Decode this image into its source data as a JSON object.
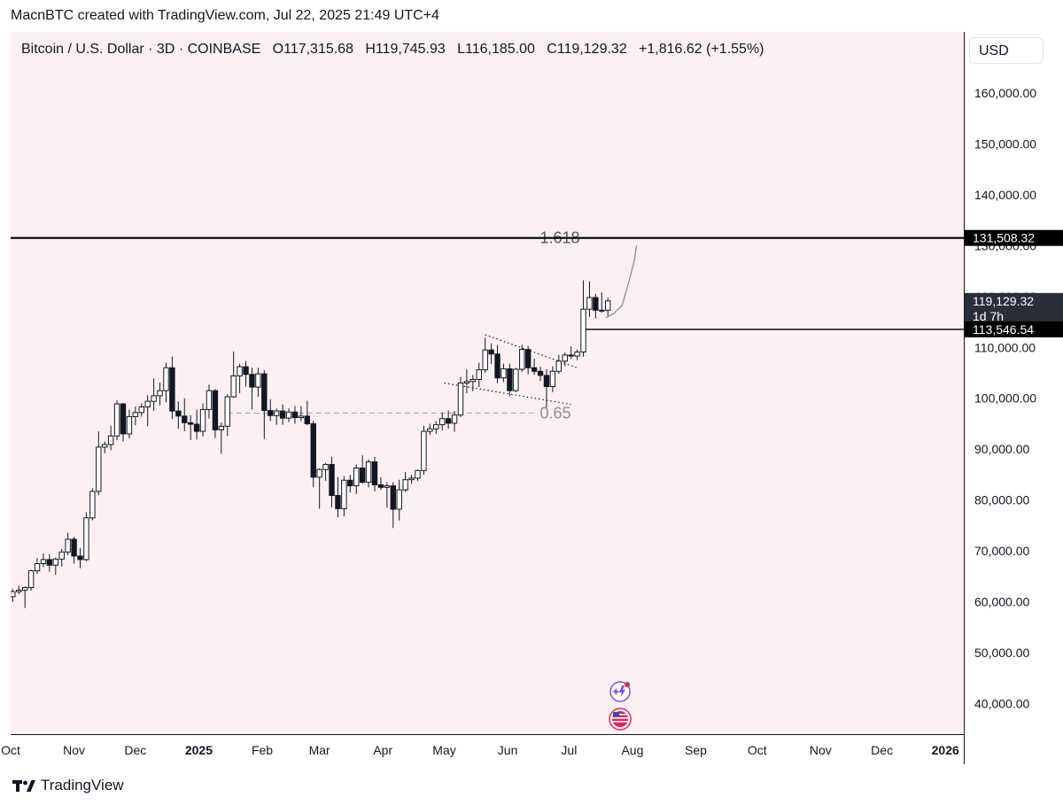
{
  "header": {
    "credit": "MacnBTC created with TradingView.com, Jul 22, 2025 21:49 UTC+4"
  },
  "legend": {
    "symbol": "Bitcoin / U.S. Dollar · 3D · COINBASE",
    "open": "O117,315.68",
    "high": "H119,745.93",
    "low": "L116,185.00",
    "close": "C119,129.32",
    "change": "+1,816.62 (+1.55%)"
  },
  "currency_button": {
    "label": "USD"
  },
  "footer": {
    "brand": "TradingView"
  },
  "colors": {
    "background": "#fcf0f2",
    "candle": "#131722",
    "up_fill": "#ffffff",
    "axis_text": "#131722",
    "fib_text": "#8a8e99"
  },
  "chart_data": {
    "type": "candlestick",
    "title": "Bitcoin / U.S. Dollar · 3D · COINBASE",
    "y_axis": {
      "range": [
        34000,
        172000
      ],
      "ticks": [
        160000,
        150000,
        140000,
        130000,
        120000,
        110000,
        100000,
        90000,
        80000,
        70000,
        60000,
        50000,
        40000
      ],
      "tick_labels": [
        "160,000.00",
        "150,000.00",
        "140,000.00",
        "130,000.00",
        "120,000.00",
        "110,000.00",
        "100,000.00",
        "90,000.00",
        "80,000.00",
        "70,000.00",
        "60,000.00",
        "50,000.00",
        "40,000.00"
      ]
    },
    "x_axis": {
      "range": [
        "2024-10-01",
        "2026-01-10"
      ],
      "ticks": [
        {
          "date": "2024-10-01",
          "label": "Oct"
        },
        {
          "date": "2024-11-01",
          "label": "Nov"
        },
        {
          "date": "2024-12-01",
          "label": "Dec"
        },
        {
          "date": "2025-01-01",
          "label": "2025"
        },
        {
          "date": "2025-02-01",
          "label": "Feb"
        },
        {
          "date": "2025-03-01",
          "label": "Mar"
        },
        {
          "date": "2025-04-01",
          "label": "Apr"
        },
        {
          "date": "2025-05-01",
          "label": "May"
        },
        {
          "date": "2025-06-01",
          "label": "Jun"
        },
        {
          "date": "2025-07-01",
          "label": "Jul"
        },
        {
          "date": "2025-08-01",
          "label": "Aug"
        },
        {
          "date": "2025-09-01",
          "label": "Sep"
        },
        {
          "date": "2025-10-01",
          "label": "Oct"
        },
        {
          "date": "2025-11-01",
          "label": "Nov"
        },
        {
          "date": "2025-12-01",
          "label": "Dec"
        },
        {
          "date": "2026-01-01",
          "label": "2026"
        }
      ]
    },
    "candles": [
      {
        "d": "2024-10-02",
        "o": 61000,
        "h": 62500,
        "l": 60000,
        "c": 62000
      },
      {
        "d": "2024-10-05",
        "o": 62000,
        "h": 63200,
        "l": 61500,
        "c": 62300
      },
      {
        "d": "2024-10-08",
        "o": 62300,
        "h": 63000,
        "l": 58800,
        "c": 62800
      },
      {
        "d": "2024-10-11",
        "o": 62800,
        "h": 66300,
        "l": 62200,
        "c": 66100
      },
      {
        "d": "2024-10-14",
        "o": 66100,
        "h": 68600,
        "l": 65500,
        "c": 67500
      },
      {
        "d": "2024-10-17",
        "o": 67500,
        "h": 69500,
        "l": 66800,
        "c": 68300
      },
      {
        "d": "2024-10-20",
        "o": 68300,
        "h": 69400,
        "l": 65900,
        "c": 67200
      },
      {
        "d": "2024-10-23",
        "o": 67200,
        "h": 68700,
        "l": 65300,
        "c": 68400
      },
      {
        "d": "2024-10-26",
        "o": 68400,
        "h": 70400,
        "l": 66900,
        "c": 69800
      },
      {
        "d": "2024-10-29",
        "o": 69800,
        "h": 73600,
        "l": 69200,
        "c": 72300
      },
      {
        "d": "2024-11-01",
        "o": 72300,
        "h": 72800,
        "l": 67500,
        "c": 69000
      },
      {
        "d": "2024-11-04",
        "o": 69000,
        "h": 70600,
        "l": 66600,
        "c": 68300
      },
      {
        "d": "2024-11-07",
        "o": 68300,
        "h": 77600,
        "l": 68000,
        "c": 76500
      },
      {
        "d": "2024-11-10",
        "o": 76500,
        "h": 82300,
        "l": 76000,
        "c": 81700
      },
      {
        "d": "2024-11-13",
        "o": 81700,
        "h": 93500,
        "l": 81000,
        "c": 90400
      },
      {
        "d": "2024-11-16",
        "o": 90400,
        "h": 91500,
        "l": 89200,
        "c": 90900
      },
      {
        "d": "2024-11-19",
        "o": 90900,
        "h": 94600,
        "l": 89800,
        "c": 92600
      },
      {
        "d": "2024-11-22",
        "o": 92600,
        "h": 99600,
        "l": 91800,
        "c": 98900
      },
      {
        "d": "2024-11-25",
        "o": 98900,
        "h": 99100,
        "l": 91500,
        "c": 93000
      },
      {
        "d": "2024-11-28",
        "o": 93000,
        "h": 97800,
        "l": 92100,
        "c": 96400
      },
      {
        "d": "2024-12-01",
        "o": 96400,
        "h": 98400,
        "l": 94700,
        "c": 97200
      },
      {
        "d": "2024-12-04",
        "o": 97200,
        "h": 99000,
        "l": 96400,
        "c": 98300
      },
      {
        "d": "2024-12-07",
        "o": 98300,
        "h": 100600,
        "l": 94500,
        "c": 99400
      },
      {
        "d": "2024-12-10",
        "o": 99400,
        "h": 103900,
        "l": 97500,
        "c": 100500
      },
      {
        "d": "2024-12-13",
        "o": 100500,
        "h": 103100,
        "l": 98600,
        "c": 101500
      },
      {
        "d": "2024-12-16",
        "o": 101500,
        "h": 107000,
        "l": 99200,
        "c": 106000
      },
      {
        "d": "2024-12-19",
        "o": 106000,
        "h": 108200,
        "l": 95900,
        "c": 97500
      },
      {
        "d": "2024-12-22",
        "o": 97500,
        "h": 99400,
        "l": 94000,
        "c": 96500
      },
      {
        "d": "2024-12-25",
        "o": 96500,
        "h": 100000,
        "l": 93500,
        "c": 95200
      },
      {
        "d": "2024-12-28",
        "o": 95200,
        "h": 96700,
        "l": 91800,
        "c": 94900
      },
      {
        "d": "2024-12-31",
        "o": 94900,
        "h": 97800,
        "l": 91900,
        "c": 93500
      },
      {
        "d": "2025-01-03",
        "o": 93500,
        "h": 99000,
        "l": 92500,
        "c": 97800
      },
      {
        "d": "2025-01-06",
        "o": 97800,
        "h": 102700,
        "l": 96000,
        "c": 101500
      },
      {
        "d": "2025-01-09",
        "o": 101500,
        "h": 101800,
        "l": 92200,
        "c": 93800
      },
      {
        "d": "2025-01-12",
        "o": 93800,
        "h": 95200,
        "l": 89100,
        "c": 94500
      },
      {
        "d": "2025-01-15",
        "o": 94500,
        "h": 100800,
        "l": 92600,
        "c": 100300
      },
      {
        "d": "2025-01-18",
        "o": 100300,
        "h": 109200,
        "l": 100100,
        "c": 104400
      },
      {
        "d": "2025-01-21",
        "o": 104400,
        "h": 106800,
        "l": 101000,
        "c": 106200
      },
      {
        "d": "2025-01-24",
        "o": 106200,
        "h": 107300,
        "l": 102300,
        "c": 104700
      },
      {
        "d": "2025-01-27",
        "o": 104700,
        "h": 106000,
        "l": 97800,
        "c": 102200
      },
      {
        "d": "2025-01-30",
        "o": 102200,
        "h": 106000,
        "l": 100300,
        "c": 104800
      },
      {
        "d": "2025-02-02",
        "o": 104800,
        "h": 105500,
        "l": 92000,
        "c": 97600
      },
      {
        "d": "2025-02-05",
        "o": 97600,
        "h": 99800,
        "l": 95500,
        "c": 96600
      },
      {
        "d": "2025-02-08",
        "o": 96600,
        "h": 98000,
        "l": 94800,
        "c": 97500
      },
      {
        "d": "2025-02-11",
        "o": 97500,
        "h": 98800,
        "l": 94800,
        "c": 96100
      },
      {
        "d": "2025-02-14",
        "o": 96100,
        "h": 98000,
        "l": 95300,
        "c": 97300
      },
      {
        "d": "2025-02-17",
        "o": 97300,
        "h": 98500,
        "l": 95000,
        "c": 96200
      },
      {
        "d": "2025-02-20",
        "o": 96200,
        "h": 98500,
        "l": 95500,
        "c": 96500
      },
      {
        "d": "2025-02-23",
        "o": 96500,
        "h": 99500,
        "l": 94700,
        "c": 95000
      },
      {
        "d": "2025-02-26",
        "o": 95000,
        "h": 95600,
        "l": 82500,
        "c": 84500
      },
      {
        "d": "2025-03-01",
        "o": 84500,
        "h": 86200,
        "l": 78300,
        "c": 86000
      },
      {
        "d": "2025-03-04",
        "o": 86000,
        "h": 87300,
        "l": 83800,
        "c": 87000
      },
      {
        "d": "2025-03-07",
        "o": 87000,
        "h": 88500,
        "l": 78600,
        "c": 80900
      },
      {
        "d": "2025-03-10",
        "o": 80900,
        "h": 84500,
        "l": 76600,
        "c": 78300
      },
      {
        "d": "2025-03-13",
        "o": 78300,
        "h": 84700,
        "l": 76800,
        "c": 83900
      },
      {
        "d": "2025-03-16",
        "o": 83900,
        "h": 85000,
        "l": 81500,
        "c": 82800
      },
      {
        "d": "2025-03-19",
        "o": 82800,
        "h": 87000,
        "l": 81200,
        "c": 86300
      },
      {
        "d": "2025-03-22",
        "o": 86300,
        "h": 88800,
        "l": 83200,
        "c": 83500
      },
      {
        "d": "2025-03-25",
        "o": 83500,
        "h": 88000,
        "l": 82500,
        "c": 87500
      },
      {
        "d": "2025-03-28",
        "o": 87500,
        "h": 88500,
        "l": 81700,
        "c": 83000
      },
      {
        "d": "2025-03-31",
        "o": 83000,
        "h": 84500,
        "l": 82000,
        "c": 82500
      },
      {
        "d": "2025-04-03",
        "o": 82500,
        "h": 83500,
        "l": 78500,
        "c": 82800
      },
      {
        "d": "2025-04-06",
        "o": 82800,
        "h": 83500,
        "l": 74500,
        "c": 78200
      },
      {
        "d": "2025-04-09",
        "o": 78200,
        "h": 84000,
        "l": 76000,
        "c": 82000
      },
      {
        "d": "2025-04-12",
        "o": 82000,
        "h": 85500,
        "l": 81600,
        "c": 84000
      },
      {
        "d": "2025-04-15",
        "o": 84000,
        "h": 85000,
        "l": 83200,
        "c": 84300
      },
      {
        "d": "2025-04-18",
        "o": 84300,
        "h": 86000,
        "l": 83800,
        "c": 85800
      },
      {
        "d": "2025-04-21",
        "o": 85800,
        "h": 94600,
        "l": 85000,
        "c": 93500
      },
      {
        "d": "2025-04-24",
        "o": 93500,
        "h": 95000,
        "l": 92800,
        "c": 94000
      },
      {
        "d": "2025-04-27",
        "o": 94000,
        "h": 95500,
        "l": 93000,
        "c": 94800
      },
      {
        "d": "2025-04-30",
        "o": 94800,
        "h": 97200,
        "l": 93700,
        "c": 96000
      },
      {
        "d": "2025-05-03",
        "o": 96000,
        "h": 97600,
        "l": 94000,
        "c": 95100
      },
      {
        "d": "2025-05-06",
        "o": 95100,
        "h": 97500,
        "l": 93400,
        "c": 96700
      },
      {
        "d": "2025-05-09",
        "o": 96700,
        "h": 104200,
        "l": 96300,
        "c": 103000
      },
      {
        "d": "2025-05-12",
        "o": 103000,
        "h": 105700,
        "l": 101000,
        "c": 103300
      },
      {
        "d": "2025-05-15",
        "o": 103300,
        "h": 104600,
        "l": 101400,
        "c": 103700
      },
      {
        "d": "2025-05-18",
        "o": 103700,
        "h": 107000,
        "l": 102200,
        "c": 105600
      },
      {
        "d": "2025-05-21",
        "o": 105600,
        "h": 111900,
        "l": 105000,
        "c": 109500
      },
      {
        "d": "2025-05-24",
        "o": 109500,
        "h": 110800,
        "l": 106700,
        "c": 108700
      },
      {
        "d": "2025-05-27",
        "o": 108700,
        "h": 110500,
        "l": 103000,
        "c": 104000
      },
      {
        "d": "2025-05-30",
        "o": 104000,
        "h": 106800,
        "l": 103200,
        "c": 105800
      },
      {
        "d": "2025-06-02",
        "o": 105800,
        "h": 106800,
        "l": 100400,
        "c": 101500
      },
      {
        "d": "2025-06-05",
        "o": 101500,
        "h": 106000,
        "l": 101200,
        "c": 105700
      },
      {
        "d": "2025-06-08",
        "o": 105700,
        "h": 110500,
        "l": 105200,
        "c": 109600
      },
      {
        "d": "2025-06-11",
        "o": 109600,
        "h": 110300,
        "l": 104700,
        "c": 106000
      },
      {
        "d": "2025-06-14",
        "o": 106000,
        "h": 107800,
        "l": 104600,
        "c": 105300
      },
      {
        "d": "2025-06-17",
        "o": 105300,
        "h": 106200,
        "l": 103400,
        "c": 104500
      },
      {
        "d": "2025-06-20",
        "o": 104500,
        "h": 105700,
        "l": 98200,
        "c": 102300
      },
      {
        "d": "2025-06-23",
        "o": 102300,
        "h": 106300,
        "l": 101200,
        "c": 105300
      },
      {
        "d": "2025-06-26",
        "o": 105300,
        "h": 108500,
        "l": 104800,
        "c": 107300
      },
      {
        "d": "2025-06-29",
        "o": 107300,
        "h": 109000,
        "l": 106300,
        "c": 108500
      },
      {
        "d": "2025-07-02",
        "o": 108500,
        "h": 110200,
        "l": 107700,
        "c": 108300
      },
      {
        "d": "2025-07-05",
        "o": 108300,
        "h": 109600,
        "l": 107500,
        "c": 109100
      },
      {
        "d": "2025-07-08",
        "o": 109100,
        "h": 123200,
        "l": 108200,
        "c": 117500
      },
      {
        "d": "2025-07-11",
        "o": 117500,
        "h": 123000,
        "l": 116000,
        "c": 119800
      },
      {
        "d": "2025-07-14",
        "o": 119800,
        "h": 120500,
        "l": 115700,
        "c": 117300
      },
      {
        "d": "2025-07-17",
        "o": 117300,
        "h": 120800,
        "l": 116800,
        "c": 117300
      },
      {
        "d": "2025-07-20",
        "o": 117315.68,
        "h": 119745.93,
        "l": 116185.0,
        "c": 119129.32
      }
    ],
    "price_lines": [
      {
        "price": 131508.32,
        "label": "131,508.32"
      },
      {
        "price": 113546.54,
        "label": "113,546.54",
        "from": "2025-07-08"
      }
    ],
    "current_price": {
      "price": 119129.32,
      "label": "119,129.32",
      "countdown": "1d 7h"
    },
    "fib_levels": [
      {
        "ratio": "1.618",
        "price": 131508.32,
        "from": "2025-01-15",
        "to": "2025-07-11"
      },
      {
        "ratio": "0.65",
        "price": 97100,
        "from": "2025-01-15",
        "to": "2025-07-11"
      }
    ],
    "channel_lines": [
      {
        "from": {
          "d": "2025-05-21",
          "p": 112500
        },
        "to": {
          "d": "2025-07-05",
          "p": 106000
        }
      },
      {
        "from": {
          "d": "2025-05-01",
          "p": 103000
        },
        "to": {
          "d": "2025-07-02",
          "p": 98800
        }
      }
    ],
    "projection_path": [
      {
        "d": "2025-07-19",
        "p": 115800
      },
      {
        "d": "2025-07-23",
        "p": 116700
      },
      {
        "d": "2025-07-27",
        "p": 118300
      },
      {
        "d": "2025-07-30",
        "p": 122500
      },
      {
        "d": "2025-08-02",
        "p": 127200
      },
      {
        "d": "2025-08-03",
        "p": 130000
      }
    ]
  }
}
